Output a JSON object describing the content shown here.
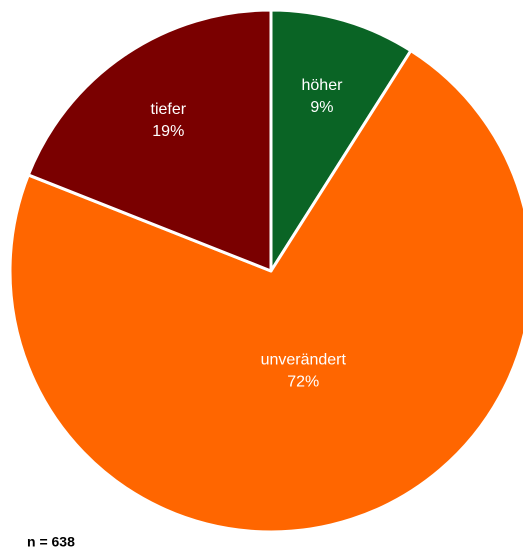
{
  "chart_data": {
    "type": "pie",
    "categories": [
      "höher",
      "unverändert",
      "tiefer"
    ],
    "values": [
      9,
      72,
      19
    ],
    "value_labels": [
      "9%",
      "72%",
      "19%"
    ],
    "colors": [
      "#0a6425",
      "#ff6600",
      "#7a0000"
    ],
    "annotation": "n = 638"
  }
}
